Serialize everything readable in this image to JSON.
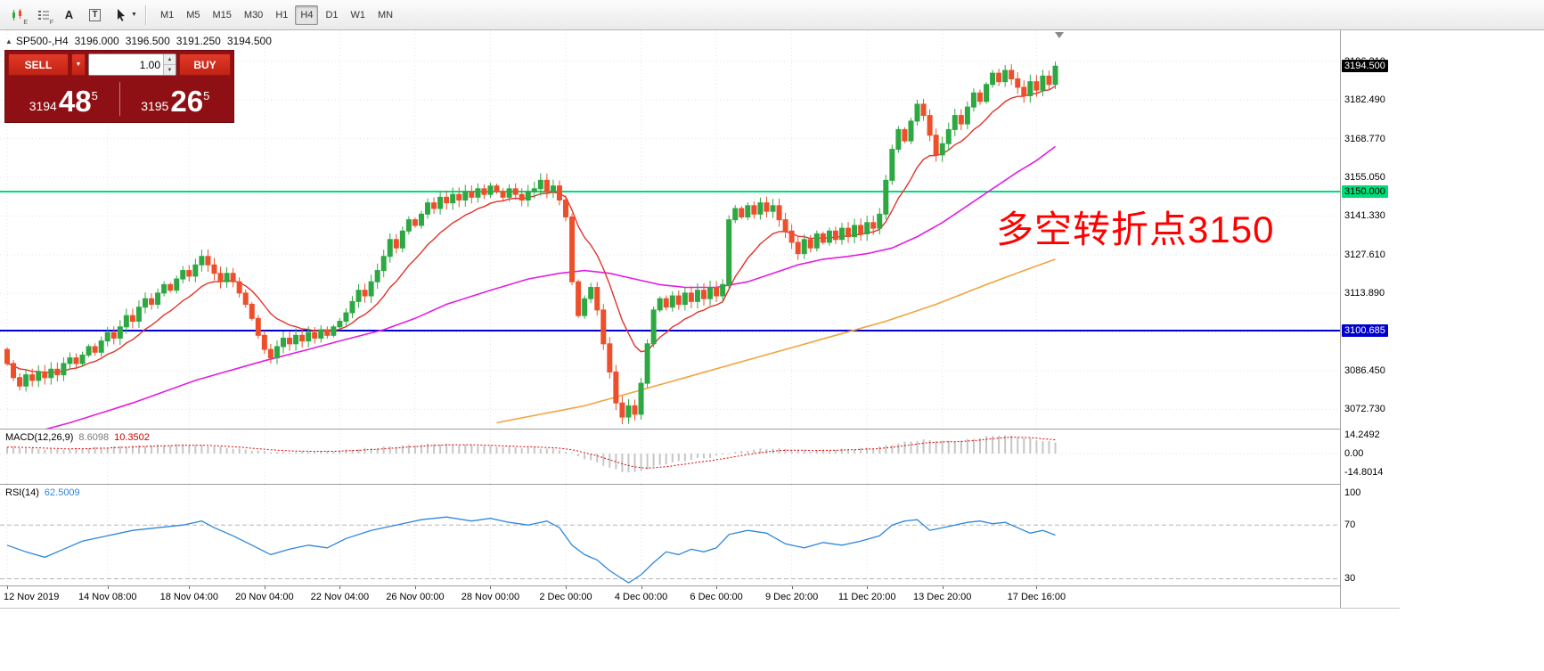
{
  "toolbar": {
    "icons": [
      {
        "name": "candlestick-chart-icon",
        "sub": "E"
      },
      {
        "name": "indicator-list-icon",
        "sub": "F"
      },
      {
        "name": "font-tool-icon",
        "glyph": "A"
      },
      {
        "name": "text-label-tool-icon",
        "glyph": "T"
      },
      {
        "name": "cursor-tool-icon",
        "caret": "▼"
      }
    ],
    "timeframes": [
      "M1",
      "M5",
      "M15",
      "M30",
      "H1",
      "H4",
      "D1",
      "W1",
      "MN"
    ],
    "active_timeframe": "H4"
  },
  "chart_header": {
    "marker": "▲",
    "symbol_period": "SP500-,H4",
    "open": "3196.000",
    "high": "3196.500",
    "low": "3191.250",
    "close": "3194.500"
  },
  "trade_panel": {
    "sell_label": "SELL",
    "buy_label": "BUY",
    "volume": "1.00",
    "dropdown_caret": "▼",
    "spin_up": "▲",
    "spin_down": "▼",
    "sell_price_small": "3194",
    "sell_price_big": "48",
    "sell_price_sup": "5",
    "buy_price_small": "3195",
    "buy_price_big": "26",
    "buy_price_sup": "5"
  },
  "annotation": {
    "text": "多空转折点3150",
    "color": "#FF0000"
  },
  "macd_panel": {
    "name": "MACD(12,26,9)",
    "value": "8.6098",
    "signal": "10.3502"
  },
  "rsi_panel": {
    "name": "RSI(14)",
    "value": "62.5009"
  },
  "chart_data": {
    "type": "candlestick",
    "symbol": "SP500-",
    "period": "H4",
    "open_first": 3094,
    "closes": [
      3089,
      3084,
      3081,
      3085,
      3083,
      3086,
      3084,
      3087,
      3085,
      3089,
      3091,
      3089,
      3092,
      3095,
      3093,
      3097,
      3100,
      3098,
      3102,
      3106,
      3104,
      3109,
      3112,
      3110,
      3114,
      3117,
      3115,
      3119,
      3122,
      3120,
      3124,
      3127,
      3124,
      3121,
      3118,
      3121,
      3118,
      3114,
      3110,
      3105,
      3099,
      3094,
      3091,
      3095,
      3098,
      3096,
      3099,
      3097,
      3100,
      3098,
      3101,
      3099,
      3102,
      3104,
      3107,
      3111,
      3115,
      3113,
      3118,
      3122,
      3127,
      3133,
      3130,
      3136,
      3140,
      3138,
      3142,
      3146,
      3144,
      3148,
      3146,
      3149,
      3147,
      3150,
      3148,
      3151,
      3149,
      3152,
      3150,
      3148,
      3151,
      3149,
      3147,
      3150,
      3151,
      3154,
      3150,
      3152,
      3147,
      3141,
      3118,
      3106,
      3112,
      3116,
      3108,
      3096,
      3086,
      3075,
      3070,
      3074,
      3071,
      3082,
      3096,
      3108,
      3112,
      3109,
      3113,
      3110,
      3114,
      3111,
      3115,
      3112,
      3116,
      3113,
      3117,
      3140,
      3144,
      3141,
      3145,
      3142,
      3146,
      3143,
      3145,
      3140,
      3136,
      3132,
      3128,
      3133,
      3130,
      3135,
      3132,
      3136,
      3133,
      3137,
      3134,
      3138,
      3135,
      3139,
      3137,
      3142,
      3154,
      3165,
      3172,
      3168,
      3175,
      3181,
      3177,
      3170,
      3163,
      3167,
      3172,
      3177,
      3174,
      3180,
      3185,
      3182,
      3188,
      3192,
      3189,
      3193,
      3190,
      3187,
      3184,
      3189,
      3186,
      3191,
      3188,
      3194.5
    ],
    "candle_up_color": "#2DA843",
    "candle_down_color": "#EE4F2B",
    "price_ticks": [
      3196.21,
      3182.49,
      3168.77,
      3155.05,
      3141.33,
      3127.61,
      3113.89,
      3100.17,
      3086.45,
      3072.73
    ],
    "current_price": {
      "value": 3194.5,
      "label": "3194.500"
    },
    "hlines": [
      {
        "price": 3150.0,
        "label": "3150.000",
        "color": "#00DC78",
        "badge_bg": "#00DC78",
        "badge_text": "#000000"
      },
      {
        "price": 3100.685,
        "label": "3100.685",
        "color": "#0000CD",
        "badge_bg": "#0000CD",
        "badge_text": "#FFFFFF"
      }
    ],
    "ma": {
      "red_ema_period": 12,
      "red_color": "#E0332A",
      "magenta_color": "#E21EE2",
      "magenta_points": [
        [
          0,
          3062
        ],
        [
          10,
          3068
        ],
        [
          20,
          3075
        ],
        [
          30,
          3083
        ],
        [
          41,
          3090
        ],
        [
          48,
          3094
        ],
        [
          53,
          3097
        ],
        [
          60,
          3101
        ],
        [
          65,
          3105
        ],
        [
          70,
          3110
        ],
        [
          77,
          3115
        ],
        [
          83,
          3119
        ],
        [
          88,
          3121
        ],
        [
          92,
          3122
        ],
        [
          96,
          3121
        ],
        [
          100,
          3119
        ],
        [
          104,
          3117
        ],
        [
          108,
          3116
        ],
        [
          113,
          3116
        ],
        [
          118,
          3118
        ],
        [
          122,
          3121
        ],
        [
          126,
          3124
        ],
        [
          130,
          3126
        ],
        [
          134,
          3127
        ],
        [
          137,
          3128
        ],
        [
          141,
          3130
        ],
        [
          145,
          3134
        ],
        [
          149,
          3139
        ],
        [
          153,
          3145
        ],
        [
          157,
          3151
        ],
        [
          161,
          3157
        ],
        [
          164,
          3161
        ],
        [
          167,
          3166
        ]
      ],
      "orange_color": "#F2A33C",
      "orange_points": [
        [
          78,
          3068
        ],
        [
          85,
          3071
        ],
        [
          92,
          3074
        ],
        [
          100,
          3079
        ],
        [
          108,
          3084
        ],
        [
          116,
          3089
        ],
        [
          124,
          3094
        ],
        [
          132,
          3099
        ],
        [
          140,
          3104
        ],
        [
          148,
          3110
        ],
        [
          156,
          3117
        ],
        [
          162,
          3122
        ],
        [
          167,
          3126
        ]
      ]
    },
    "macd": {
      "hist_color": "#C6C6C6",
      "signal_color": "#DE0000",
      "signal_ema": 9,
      "axis": [
        {
          "label": "14.2492",
          "value": 14.2492
        },
        {
          "label": "0.00",
          "value": 0
        },
        {
          "label": "-14.8014",
          "value": -14.8014
        }
      ],
      "hist_points": [
        [
          0,
          5
        ],
        [
          4,
          4
        ],
        [
          8,
          3
        ],
        [
          12,
          4
        ],
        [
          16,
          5
        ],
        [
          20,
          6
        ],
        [
          24,
          6.5
        ],
        [
          28,
          7
        ],
        [
          32,
          6
        ],
        [
          36,
          4
        ],
        [
          40,
          2
        ],
        [
          44,
          1
        ],
        [
          48,
          1.5
        ],
        [
          52,
          2
        ],
        [
          56,
          3.5
        ],
        [
          60,
          5
        ],
        [
          64,
          6.5
        ],
        [
          68,
          7.5
        ],
        [
          72,
          7
        ],
        [
          76,
          6
        ],
        [
          80,
          5
        ],
        [
          84,
          4.5
        ],
        [
          88,
          3
        ],
        [
          90,
          0
        ],
        [
          92,
          -4
        ],
        [
          94,
          -7
        ],
        [
          96,
          -11
        ],
        [
          98,
          -14
        ],
        [
          100,
          -14.8
        ],
        [
          102,
          -12
        ],
        [
          104,
          -9
        ],
        [
          106,
          -7
        ],
        [
          108,
          -5.5
        ],
        [
          110,
          -4
        ],
        [
          112,
          -3
        ],
        [
          114,
          -1
        ],
        [
          116,
          1
        ],
        [
          118,
          2.5
        ],
        [
          120,
          3.5
        ],
        [
          122,
          4
        ],
        [
          124,
          3.5
        ],
        [
          126,
          2.5
        ],
        [
          128,
          2
        ],
        [
          130,
          2.5
        ],
        [
          132,
          3
        ],
        [
          134,
          3.5
        ],
        [
          136,
          4
        ],
        [
          138,
          4.5
        ],
        [
          140,
          6
        ],
        [
          142,
          8
        ],
        [
          144,
          9.5
        ],
        [
          146,
          10.5
        ],
        [
          148,
          10
        ],
        [
          150,
          9.5
        ],
        [
          152,
          10
        ],
        [
          154,
          11.5
        ],
        [
          156,
          13
        ],
        [
          158,
          14.2
        ],
        [
          160,
          13.5
        ],
        [
          162,
          12
        ],
        [
          164,
          10.5
        ],
        [
          166,
          9.2
        ],
        [
          167,
          8.6
        ]
      ]
    },
    "rsi": {
      "color": "#2E86DE",
      "levels": [
        70,
        30
      ],
      "axis": [
        {
          "label": "100",
          "value": 100
        },
        {
          "label": "70",
          "value": 70
        },
        {
          "label": "30",
          "value": 30
        }
      ],
      "points": [
        [
          0,
          55
        ],
        [
          3,
          50
        ],
        [
          6,
          46
        ],
        [
          9,
          52
        ],
        [
          12,
          58
        ],
        [
          16,
          62
        ],
        [
          20,
          66
        ],
        [
          24,
          68
        ],
        [
          28,
          70
        ],
        [
          31,
          73
        ],
        [
          33,
          68
        ],
        [
          36,
          62
        ],
        [
          39,
          55
        ],
        [
          42,
          48
        ],
        [
          45,
          52
        ],
        [
          48,
          55
        ],
        [
          51,
          53
        ],
        [
          54,
          60
        ],
        [
          58,
          66
        ],
        [
          62,
          70
        ],
        [
          66,
          74
        ],
        [
          70,
          76
        ],
        [
          74,
          73
        ],
        [
          77,
          75
        ],
        [
          80,
          72
        ],
        [
          83,
          70
        ],
        [
          86,
          73
        ],
        [
          88,
          68
        ],
        [
          90,
          55
        ],
        [
          92,
          48
        ],
        [
          94,
          44
        ],
        [
          96,
          36
        ],
        [
          98,
          30
        ],
        [
          99,
          27
        ],
        [
          101,
          33
        ],
        [
          103,
          42
        ],
        [
          105,
          50
        ],
        [
          107,
          48
        ],
        [
          109,
          52
        ],
        [
          111,
          50
        ],
        [
          113,
          53
        ],
        [
          115,
          63
        ],
        [
          118,
          66
        ],
        [
          121,
          64
        ],
        [
          124,
          56
        ],
        [
          127,
          53
        ],
        [
          130,
          57
        ],
        [
          133,
          55
        ],
        [
          136,
          58
        ],
        [
          139,
          62
        ],
        [
          141,
          70
        ],
        [
          143,
          73
        ],
        [
          145,
          74
        ],
        [
          147,
          66
        ],
        [
          149,
          68
        ],
        [
          151,
          70
        ],
        [
          153,
          72
        ],
        [
          155,
          73
        ],
        [
          157,
          71
        ],
        [
          159,
          72
        ],
        [
          161,
          68
        ],
        [
          163,
          64
        ],
        [
          165,
          66
        ],
        [
          167,
          62.5
        ]
      ]
    },
    "time_ticks": [
      {
        "label": "12 Nov 2019",
        "i": 0
      },
      {
        "label": "14 Nov 08:00",
        "i": 16
      },
      {
        "label": "18 Nov 04:00",
        "i": 29
      },
      {
        "label": "20 Nov 04:00",
        "i": 41
      },
      {
        "label": "22 Nov 04:00",
        "i": 53
      },
      {
        "label": "26 Nov 00:00",
        "i": 65
      },
      {
        "label": "28 Nov 00:00",
        "i": 77
      },
      {
        "label": "2 Dec 00:00",
        "i": 89
      },
      {
        "label": "4 Dec 00:00",
        "i": 101
      },
      {
        "label": "6 Dec 00:00",
        "i": 113
      },
      {
        "label": "9 Dec 20:00",
        "i": 125
      },
      {
        "label": "11 Dec 20:00",
        "i": 137
      },
      {
        "label": "13 Dec 20:00",
        "i": 149
      },
      {
        "label": "17 Dec 16:00",
        "i": 164
      }
    ]
  }
}
